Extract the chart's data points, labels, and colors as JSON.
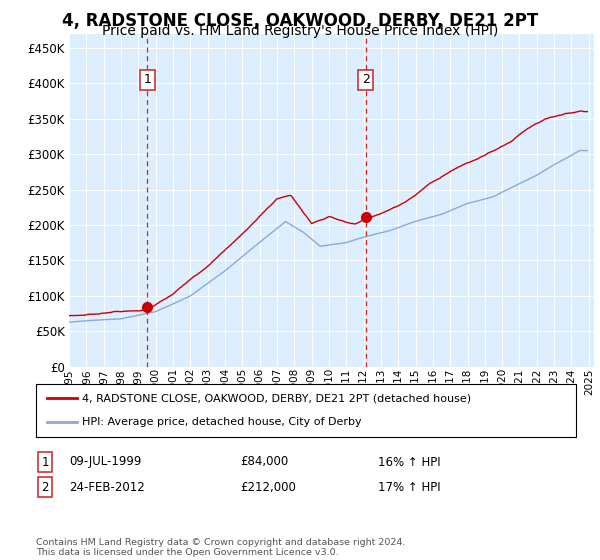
{
  "title": "4, RADSTONE CLOSE, OAKWOOD, DERBY, DE21 2PT",
  "subtitle": "Price paid vs. HM Land Registry's House Price Index (HPI)",
  "yticks": [
    0,
    50000,
    100000,
    150000,
    200000,
    250000,
    300000,
    350000,
    400000,
    450000
  ],
  "ylim": [
    0,
    470000
  ],
  "xlim": [
    1995,
    2025.3
  ],
  "background_color": "#ffffff",
  "plot_bg_color": "#ddeeff",
  "grid_color": "#ffffff",
  "title_fontsize": 12,
  "subtitle_fontsize": 10,
  "legend_label_red": "4, RADSTONE CLOSE, OAKWOOD, DERBY, DE21 2PT (detached house)",
  "legend_label_blue": "HPI: Average price, detached house, City of Derby",
  "marker1_x": 1999.53,
  "marker1_value": 84000,
  "marker1_label": "09-JUL-1999",
  "marker1_price": "£84,000",
  "marker1_hpi": "16% ↑ HPI",
  "marker2_x": 2012.13,
  "marker2_value": 212000,
  "marker2_label": "24-FEB-2012",
  "marker2_price": "£212,000",
  "marker2_hpi": "17% ↑ HPI",
  "footnote": "Contains HM Land Registry data © Crown copyright and database right 2024.\nThis data is licensed under the Open Government Licence v3.0.",
  "red_line_color": "#cc0000",
  "blue_line_color": "#88aadd",
  "marker_dot_color": "#cc0000",
  "dashed_line_color": "#dd2222",
  "box_edge_color": "#cc2222"
}
